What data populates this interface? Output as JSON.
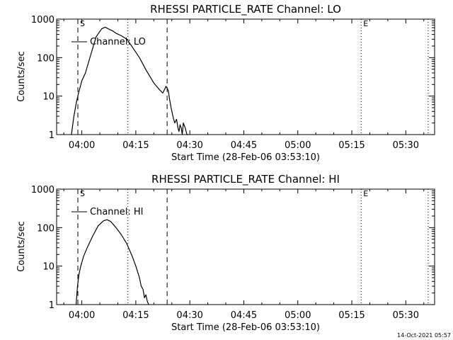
{
  "footer": {
    "timestamp": "14-Oct-2021 05:57"
  },
  "chart_data": [
    {
      "type": "line",
      "title": "RHESSI PARTICLE_RATE Channel: LO",
      "xlabel": "Start Time (28-Feb-06 03:53:10)",
      "ylabel": "Counts/sec",
      "yscale": "log",
      "ylim": [
        1,
        1000
      ],
      "xlim_minutes": [
        -7,
        98
      ],
      "x_ticks": [
        {
          "t": 0,
          "label": "04:00"
        },
        {
          "t": 15,
          "label": "04:15"
        },
        {
          "t": 30,
          "label": "04:30"
        },
        {
          "t": 45,
          "label": "04:45"
        },
        {
          "t": 60,
          "label": "05:00"
        },
        {
          "t": 75,
          "label": "05:15"
        },
        {
          "t": 90,
          "label": "05:30"
        }
      ],
      "y_ticks": [
        {
          "v": 1,
          "label": "1"
        },
        {
          "v": 10,
          "label": "10"
        },
        {
          "v": 100,
          "label": "100"
        },
        {
          "v": 1000,
          "label": "1000"
        }
      ],
      "markers": [
        {
          "t": -1.1,
          "style": "dashed",
          "label": "S"
        },
        {
          "t": 12.8,
          "style": "dotted",
          "label": ""
        },
        {
          "t": 23.7,
          "style": "dashed",
          "label": ""
        },
        {
          "t": 77.6,
          "style": "dotted",
          "label": "E"
        },
        {
          "t": 96.2,
          "style": "dotted",
          "label": ""
        }
      ],
      "legend": "Channel: LO",
      "series": [
        {
          "name": "Channel: LO",
          "x": [
            -2.9,
            -2.2,
            -1.5,
            -0.9,
            0.0,
            1.0,
            2.5,
            4.0,
            5.5,
            6.5,
            7.5,
            8.5,
            9.5,
            11.0,
            12.5,
            14.0,
            16.0,
            18.0,
            20.0,
            21.5,
            22.5,
            23.0,
            23.4,
            23.7,
            24.0,
            24.4,
            24.8,
            25.3,
            25.8,
            26.3,
            26.7,
            27.0,
            27.3,
            27.6,
            27.9,
            28.2,
            28.7,
            29.2,
            29.6
          ],
          "y": [
            1,
            3,
            7,
            12,
            25,
            40,
            120,
            350,
            560,
            620,
            550,
            500,
            430,
            370,
            300,
            190,
            100,
            45,
            22,
            15,
            12,
            15,
            18,
            16,
            14,
            8,
            5,
            3,
            2,
            2.5,
            1.5,
            1.2,
            1.8,
            1.5,
            1,
            2,
            1.5,
            1,
            1
          ]
        }
      ]
    },
    {
      "type": "line",
      "title": "RHESSI PARTICLE_RATE Channel: HI",
      "xlabel": "Start Time (28-Feb-06 03:53:10)",
      "ylabel": "Counts/sec",
      "yscale": "log",
      "ylim": [
        1,
        1000
      ],
      "xlim_minutes": [
        -7,
        98
      ],
      "x_ticks": [
        {
          "t": 0,
          "label": "04:00"
        },
        {
          "t": 15,
          "label": "04:15"
        },
        {
          "t": 30,
          "label": "04:30"
        },
        {
          "t": 45,
          "label": "04:45"
        },
        {
          "t": 60,
          "label": "05:00"
        },
        {
          "t": 75,
          "label": "05:15"
        },
        {
          "t": 90,
          "label": "05:30"
        }
      ],
      "y_ticks": [
        {
          "v": 1,
          "label": "1"
        },
        {
          "v": 10,
          "label": "10"
        },
        {
          "v": 100,
          "label": "100"
        },
        {
          "v": 1000,
          "label": "1000"
        }
      ],
      "markers": [
        {
          "t": -1.1,
          "style": "dashed",
          "label": "S"
        },
        {
          "t": 12.8,
          "style": "dotted",
          "label": ""
        },
        {
          "t": 23.7,
          "style": "dashed",
          "label": ""
        },
        {
          "t": 77.6,
          "style": "dotted",
          "label": "E"
        },
        {
          "t": 96.2,
          "style": "dotted",
          "label": ""
        }
      ],
      "legend": "Channel: HI",
      "series": [
        {
          "name": "Channel: HI",
          "x": [
            -1.6,
            -1.2,
            -0.8,
            -0.3,
            0.5,
            1.5,
            3.0,
            4.5,
            6.0,
            7.0,
            8.0,
            9.5,
            11.0,
            12.5,
            14.0,
            15.0,
            16.0,
            16.5,
            17.0,
            17.4,
            17.8,
            18.2,
            18.6
          ],
          "y": [
            1,
            3,
            6,
            10,
            18,
            30,
            60,
            110,
            150,
            160,
            145,
            100,
            65,
            38,
            18,
            10,
            5,
            3,
            2.5,
            1.5,
            1.8,
            1.2,
            1
          ]
        }
      ]
    }
  ]
}
